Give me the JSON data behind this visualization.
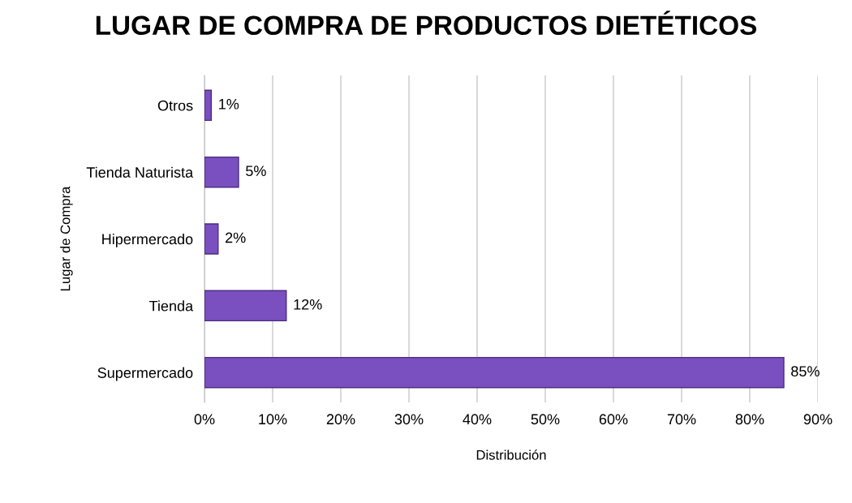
{
  "chart_data": {
    "type": "bar",
    "orientation": "horizontal",
    "title": "LUGAR DE COMPRA DE PRODUCTOS DIETÉTICOS",
    "xlabel": "Distribución",
    "ylabel": "Lugar de Compra",
    "categories": [
      "Otros",
      "Tienda Naturista",
      "Hipermercado",
      "Tienda",
      "Supermercado"
    ],
    "values": [
      1,
      5,
      2,
      12,
      85
    ],
    "value_labels": [
      "1%",
      "5%",
      "2%",
      "12%",
      "85%"
    ],
    "color": "#7a4fbf",
    "xlim": [
      0,
      90
    ],
    "xticks": [
      {
        "value": 0,
        "label": "0%"
      },
      {
        "value": 10,
        "label": "10%"
      },
      {
        "value": 20,
        "label": "20%"
      },
      {
        "value": 30,
        "label": "30%"
      },
      {
        "value": 40,
        "label": "40%"
      },
      {
        "value": 50,
        "label": "50%"
      },
      {
        "value": 60,
        "label": "60%"
      },
      {
        "value": 70,
        "label": "70%"
      },
      {
        "value": 80,
        "label": "80%"
      },
      {
        "value": 90,
        "label": "90%"
      }
    ],
    "grid": "x",
    "legend": false
  }
}
